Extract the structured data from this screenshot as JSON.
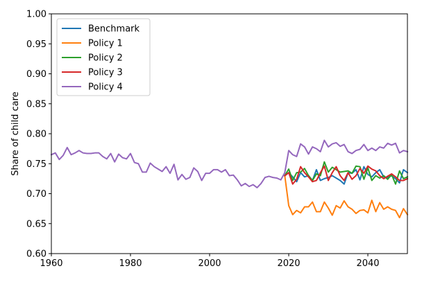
{
  "chart_data": {
    "type": "line",
    "title": "",
    "xlabel": "",
    "ylabel": "Share of child care",
    "xlim": [
      1960,
      2050
    ],
    "ylim": [
      0.6,
      1.0
    ],
    "xticks": [
      "1960",
      "1980",
      "2000",
      "2020",
      "2040"
    ],
    "yticks": [
      "0.60",
      "0.65",
      "0.70",
      "0.75",
      "0.80",
      "0.85",
      "0.90",
      "0.95",
      "1.00"
    ],
    "grid": false,
    "legend_position": "upper-left",
    "series": [
      {
        "name": "Benchmark",
        "color": "#1f77b4",
        "x": [
          2019,
          2020,
          2021,
          2022,
          2023,
          2024,
          2025,
          2026,
          2027,
          2028,
          2029,
          2030,
          2031,
          2032,
          2033,
          2034,
          2035,
          2036,
          2037,
          2038,
          2039,
          2040,
          2041,
          2042,
          2043,
          2044,
          2045,
          2046,
          2047,
          2048,
          2049,
          2050
        ],
        "values": [
          0.73,
          0.735,
          0.728,
          0.72,
          0.735,
          0.728,
          0.73,
          0.722,
          0.74,
          0.722,
          0.725,
          0.727,
          0.73,
          0.726,
          0.722,
          0.716,
          0.735,
          0.734,
          0.74,
          0.723,
          0.745,
          0.732,
          0.728,
          0.735,
          0.74,
          0.728,
          0.727,
          0.73,
          0.725,
          0.718,
          0.74,
          0.735
        ]
      },
      {
        "name": "Policy 1",
        "color": "#ff7f0e",
        "x": [
          2019,
          2020,
          2021,
          2022,
          2023,
          2024,
          2025,
          2026,
          2027,
          2028,
          2029,
          2030,
          2031,
          2032,
          2033,
          2034,
          2035,
          2036,
          2037,
          2038,
          2039,
          2040,
          2041,
          2042,
          2043,
          2044,
          2045,
          2046,
          2047,
          2048,
          2049,
          2050
        ],
        "values": [
          0.73,
          0.68,
          0.665,
          0.672,
          0.668,
          0.678,
          0.678,
          0.686,
          0.67,
          0.67,
          0.686,
          0.676,
          0.664,
          0.68,
          0.676,
          0.688,
          0.678,
          0.674,
          0.667,
          0.672,
          0.673,
          0.668,
          0.689,
          0.67,
          0.685,
          0.674,
          0.678,
          0.674,
          0.672,
          0.66,
          0.675,
          0.665
        ]
      },
      {
        "name": "Policy 2",
        "color": "#2ca02c",
        "x": [
          2019,
          2020,
          2021,
          2022,
          2023,
          2024,
          2025,
          2026,
          2027,
          2028,
          2029,
          2030,
          2031,
          2032,
          2033,
          2034,
          2035,
          2036,
          2037,
          2038,
          2039,
          2040,
          2041,
          2042,
          2043,
          2044,
          2045,
          2046,
          2047,
          2048,
          2049,
          2050
        ],
        "values": [
          0.73,
          0.741,
          0.722,
          0.735,
          0.736,
          0.742,
          0.73,
          0.722,
          0.733,
          0.73,
          0.753,
          0.736,
          0.744,
          0.74,
          0.736,
          0.737,
          0.738,
          0.734,
          0.746,
          0.745,
          0.724,
          0.743,
          0.722,
          0.73,
          0.726,
          0.73,
          0.724,
          0.732,
          0.716,
          0.738,
          0.725,
          0.728
        ]
      },
      {
        "name": "Policy 3",
        "color": "#d62728",
        "x": [
          2019,
          2020,
          2021,
          2022,
          2023,
          2024,
          2025,
          2026,
          2027,
          2028,
          2029,
          2030,
          2031,
          2032,
          2033,
          2034,
          2035,
          2036,
          2037,
          2038,
          2039,
          2040,
          2041,
          2042,
          2043,
          2044,
          2045,
          2046,
          2047,
          2048,
          2049,
          2050
        ],
        "values": [
          0.73,
          0.735,
          0.716,
          0.724,
          0.745,
          0.735,
          0.728,
          0.72,
          0.722,
          0.735,
          0.746,
          0.722,
          0.735,
          0.745,
          0.73,
          0.722,
          0.735,
          0.724,
          0.73,
          0.742,
          0.734,
          0.746,
          0.741,
          0.738,
          0.73,
          0.725,
          0.729,
          0.733,
          0.728,
          0.722,
          0.722,
          0.725
        ]
      },
      {
        "name": "Policy 4",
        "color": "#9467bd",
        "x": [
          1960,
          1961,
          1962,
          1963,
          1964,
          1965,
          1966,
          1967,
          1968,
          1969,
          1970,
          1971,
          1972,
          1973,
          1974,
          1975,
          1976,
          1977,
          1978,
          1979,
          1980,
          1981,
          1982,
          1983,
          1984,
          1985,
          1986,
          1987,
          1988,
          1989,
          1990,
          1991,
          1992,
          1993,
          1994,
          1995,
          1996,
          1997,
          1998,
          1999,
          2000,
          2001,
          2002,
          2003,
          2004,
          2005,
          2006,
          2007,
          2008,
          2009,
          2010,
          2011,
          2012,
          2013,
          2014,
          2015,
          2016,
          2017,
          2018,
          2019,
          2020,
          2021,
          2022,
          2023,
          2024,
          2025,
          2026,
          2027,
          2028,
          2029,
          2030,
          2031,
          2032,
          2033,
          2034,
          2035,
          2036,
          2037,
          2038,
          2039,
          2040,
          2041,
          2042,
          2043,
          2044,
          2045,
          2046,
          2047,
          2048,
          2049,
          2050
        ],
        "values": [
          0.765,
          0.768,
          0.757,
          0.764,
          0.777,
          0.765,
          0.768,
          0.772,
          0.768,
          0.767,
          0.767,
          0.768,
          0.768,
          0.762,
          0.758,
          0.767,
          0.753,
          0.766,
          0.76,
          0.758,
          0.767,
          0.752,
          0.75,
          0.736,
          0.736,
          0.751,
          0.745,
          0.741,
          0.737,
          0.745,
          0.734,
          0.749,
          0.723,
          0.732,
          0.724,
          0.727,
          0.743,
          0.737,
          0.722,
          0.734,
          0.734,
          0.74,
          0.74,
          0.736,
          0.74,
          0.73,
          0.731,
          0.723,
          0.713,
          0.717,
          0.712,
          0.715,
          0.71,
          0.717,
          0.727,
          0.729,
          0.727,
          0.726,
          0.723,
          0.735,
          0.772,
          0.765,
          0.762,
          0.783,
          0.778,
          0.766,
          0.778,
          0.775,
          0.77,
          0.789,
          0.778,
          0.783,
          0.785,
          0.779,
          0.782,
          0.77,
          0.767,
          0.772,
          0.774,
          0.782,
          0.772,
          0.776,
          0.772,
          0.778,
          0.776,
          0.784,
          0.781,
          0.784,
          0.768,
          0.772,
          0.77
        ]
      }
    ]
  }
}
